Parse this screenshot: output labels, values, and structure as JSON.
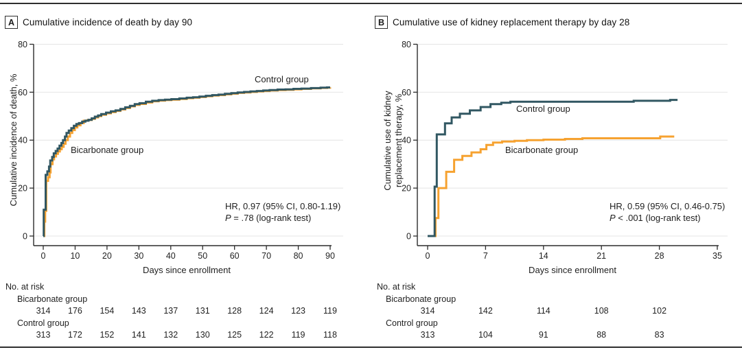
{
  "figure_kind": "two-panel cumulative incidence step plot",
  "chart_data": [
    {
      "panel_label": "A",
      "title": "Cumulative incidence of death by day 90",
      "type": "line",
      "subtype": "step",
      "xlabel": "Days since enrollment",
      "ylabel": "Cumulative incidence of death, %",
      "ylabel_lines": [
        "Cumulative incidence of death, %"
      ],
      "xlim": [
        0,
        90
      ],
      "ylim": [
        0,
        80
      ],
      "xticks": [
        0,
        10,
        20,
        30,
        40,
        50,
        60,
        70,
        80,
        90
      ],
      "yticks": [
        0,
        20,
        40,
        60,
        80
      ],
      "grid": true,
      "legend_position": "inline-labels",
      "series": [
        {
          "name": "Control group",
          "color": "#315762",
          "points": [
            [
              0,
              0
            ],
            [
              0.15,
              11
            ],
            [
              0.75,
              25.5
            ],
            [
              1.3,
              27
            ],
            [
              1.8,
              29
            ],
            [
              2.2,
              31.5
            ],
            [
              2.8,
              33
            ],
            [
              3.3,
              34.5
            ],
            [
              3.9,
              35.5
            ],
            [
              4.5,
              36.5
            ],
            [
              5.1,
              37.7
            ],
            [
              5.7,
              38.8
            ],
            [
              6.2,
              40
            ],
            [
              6.8,
              41.5
            ],
            [
              7.3,
              43
            ],
            [
              8,
              44
            ],
            [
              8.8,
              45
            ],
            [
              9.6,
              46
            ],
            [
              10.4,
              46.7
            ],
            [
              11.2,
              47.1
            ],
            [
              12.2,
              47.7
            ],
            [
              13.2,
              48.1
            ],
            [
              14.2,
              48.5
            ],
            [
              15.2,
              49.1
            ],
            [
              16.2,
              49.8
            ],
            [
              17.2,
              50.3
            ],
            [
              18.2,
              50.9
            ],
            [
              19.7,
              51.5
            ],
            [
              21.2,
              52
            ],
            [
              22.7,
              52.4
            ],
            [
              24.2,
              53
            ],
            [
              25.7,
              53.7
            ],
            [
              27.2,
              54.3
            ],
            [
              28.7,
              55
            ],
            [
              30.2,
              55.4
            ],
            [
              32.2,
              56
            ],
            [
              34.2,
              56.4
            ],
            [
              36.2,
              56.7
            ],
            [
              38.2,
              56.9
            ],
            [
              40.2,
              57.1
            ],
            [
              42.7,
              57.4
            ],
            [
              45,
              57.7
            ],
            [
              47,
              57.9
            ],
            [
              49,
              58.2
            ],
            [
              51,
              58.5
            ],
            [
              53,
              58.8
            ],
            [
              55,
              59
            ],
            [
              57,
              59.3
            ],
            [
              59,
              59.6
            ],
            [
              61,
              59.9
            ],
            [
              63,
              60.1
            ],
            [
              65,
              60.3
            ],
            [
              67,
              60.5
            ],
            [
              69,
              60.7
            ],
            [
              71,
              60.9
            ],
            [
              73.5,
              61.1
            ],
            [
              76,
              61.2
            ],
            [
              78.5,
              61.4
            ],
            [
              81,
              61.5
            ],
            [
              84,
              61.7
            ],
            [
              87,
              61.9
            ],
            [
              89,
              62
            ],
            [
              90,
              62
            ]
          ]
        },
        {
          "name": "Bicarbonate group",
          "color": "#F6A230",
          "points": [
            [
              0,
              0
            ],
            [
              0.35,
              6
            ],
            [
              0.6,
              10.5
            ],
            [
              0.95,
              23
            ],
            [
              1.5,
              24.5
            ],
            [
              2,
              26.5
            ],
            [
              2.3,
              30
            ],
            [
              2.9,
              32
            ],
            [
              3.4,
              33.2
            ],
            [
              4,
              34.3
            ],
            [
              4.6,
              35.3
            ],
            [
              5.2,
              36.2
            ],
            [
              5.8,
              37.2
            ],
            [
              6.4,
              38.5
            ],
            [
              7,
              40
            ],
            [
              7.7,
              41.5
            ],
            [
              8.4,
              43
            ],
            [
              9.1,
              44.2
            ],
            [
              9.9,
              45.3
            ],
            [
              10.7,
              46.2
            ],
            [
              11.7,
              47.1
            ],
            [
              12.7,
              48.1
            ],
            [
              14,
              48.4
            ],
            [
              15.2,
              48.9
            ],
            [
              16.2,
              49.5
            ],
            [
              17.2,
              50
            ],
            [
              18.2,
              50.6
            ],
            [
              19.7,
              51.2
            ],
            [
              21.2,
              51.7
            ],
            [
              22.7,
              52.2
            ],
            [
              24.2,
              52.8
            ],
            [
              25.7,
              53.4
            ],
            [
              27.2,
              54.1
            ],
            [
              28.7,
              54.7
            ],
            [
              30.2,
              55.1
            ],
            [
              32.2,
              55.7
            ],
            [
              34.2,
              56.2
            ],
            [
              36.2,
              56.5
            ],
            [
              38.2,
              56.7
            ],
            [
              40.2,
              56.9
            ],
            [
              42.7,
              57.2
            ],
            [
              45,
              57.5
            ],
            [
              47,
              57.7
            ],
            [
              49,
              58
            ],
            [
              51,
              58.3
            ],
            [
              53,
              58.6
            ],
            [
              55,
              58.8
            ],
            [
              57,
              59.1
            ],
            [
              59,
              59.4
            ],
            [
              61,
              59.7
            ],
            [
              63,
              59.9
            ],
            [
              65,
              60.1
            ],
            [
              67,
              60.3
            ],
            [
              69,
              60.5
            ],
            [
              71,
              60.7
            ],
            [
              73.5,
              60.9
            ],
            [
              76,
              61
            ],
            [
              78.5,
              61.2
            ],
            [
              81,
              61.4
            ],
            [
              84,
              61.6
            ],
            [
              87,
              61.8
            ],
            [
              89,
              61.9
            ],
            [
              90,
              62
            ]
          ]
        }
      ],
      "annotation": {
        "hr_line": "HR, 0.97 (95% CI, 0.80-1.19)",
        "p_label": "P",
        "p_rest": " = .78 (log-rank test)"
      },
      "risk_table": {
        "header": "No. at risk",
        "at_days": [
          0,
          10,
          20,
          30,
          40,
          50,
          60,
          70,
          80,
          90
        ],
        "rows": [
          {
            "label": "Bicarbonate group",
            "values": [
              314,
              176,
              154,
              143,
              137,
              131,
              128,
              124,
              123,
              119
            ]
          },
          {
            "label": "Control group",
            "values": [
              313,
              172,
              152,
              141,
              132,
              130,
              125,
              122,
              119,
              118
            ]
          }
        ]
      }
    },
    {
      "panel_label": "B",
      "title": "Cumulative use of kidney replacement therapy by day 28",
      "type": "line",
      "subtype": "step",
      "xlabel": "Days since enrollment",
      "ylabel": "Cumulative use of kidney replacement therapy, %",
      "ylabel_lines": [
        "Cumulative use of kidney",
        "replacement therapy, %"
      ],
      "xlim": [
        0,
        35
      ],
      "ylim": [
        0,
        80
      ],
      "xticks": [
        0,
        7,
        14,
        21,
        28,
        35
      ],
      "yticks": [
        0,
        20,
        40,
        60,
        80
      ],
      "grid": true,
      "legend_position": "inline-labels",
      "series": [
        {
          "name": "Control group",
          "color": "#315762",
          "points": [
            [
              0,
              0
            ],
            [
              0.85,
              20.6
            ],
            [
              1.1,
              42.4
            ],
            [
              2.1,
              47
            ],
            [
              2.9,
              49.5
            ],
            [
              3.9,
              51
            ],
            [
              5.1,
              52.4
            ],
            [
              6.4,
              53.8
            ],
            [
              7.6,
              55
            ],
            [
              8.9,
              55.6
            ],
            [
              10,
              56
            ],
            [
              24.9,
              56.4
            ],
            [
              29.3,
              56.8
            ],
            [
              30.2,
              56.8
            ]
          ]
        },
        {
          "name": "Bicarbonate group",
          "color": "#F6A230",
          "points": [
            [
              0,
              0
            ],
            [
              0.95,
              7.5
            ],
            [
              1.3,
              20
            ],
            [
              2.25,
              26.8
            ],
            [
              3.2,
              31.8
            ],
            [
              4.2,
              33.4
            ],
            [
              5.3,
              34.9
            ],
            [
              6.4,
              36.2
            ],
            [
              7.1,
              38
            ],
            [
              7.9,
              39
            ],
            [
              9,
              39.4
            ],
            [
              10.5,
              39.7
            ],
            [
              12,
              40
            ],
            [
              14,
              40.2
            ],
            [
              16.6,
              40.5
            ],
            [
              18.7,
              40.8
            ],
            [
              28.1,
              41.5
            ],
            [
              29.8,
              41.5
            ]
          ]
        }
      ],
      "annotation": {
        "hr_line": "HR, 0.59 (95% CI, 0.46-0.75)",
        "p_label": "P",
        "p_rest": " < .001 (log-rank test)"
      },
      "risk_table": {
        "header": "No. at risk",
        "at_days": [
          0,
          7,
          14,
          21,
          28
        ],
        "rows": [
          {
            "label": "Bicarbonate group",
            "values": [
              314,
              142,
              114,
              108,
              102
            ]
          },
          {
            "label": "Control group",
            "values": [
              313,
              104,
              91,
              88,
              83
            ]
          }
        ]
      }
    }
  ],
  "colors": {
    "control": "#315762",
    "bicarbonate": "#F6A230",
    "grid": "#E4E4E4",
    "axis": "#2b2b2b",
    "rule": "#2e2e2e"
  }
}
